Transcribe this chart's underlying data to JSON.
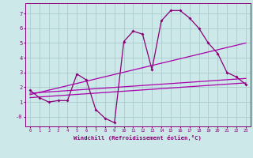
{
  "xlabel": "Windchill (Refroidissement éolien,°C)",
  "bg_color": "#cce8e8",
  "grid_color": "#aacccc",
  "line_color": "#880077",
  "line_color2": "#aa00aa",
  "xlim": [
    -0.5,
    23.5
  ],
  "ylim": [
    -0.65,
    7.7
  ],
  "xticks": [
    0,
    1,
    2,
    3,
    4,
    5,
    6,
    7,
    8,
    9,
    10,
    11,
    12,
    13,
    14,
    15,
    16,
    17,
    18,
    19,
    20,
    21,
    22,
    23
  ],
  "yticks": [
    0,
    1,
    2,
    3,
    4,
    5,
    6,
    7
  ],
  "ytick_labels": [
    "-0",
    "1",
    "2",
    "3",
    "4",
    "5",
    "6",
    "7"
  ],
  "curve1_x": [
    0,
    1,
    2,
    3,
    4,
    5,
    6,
    7,
    8,
    9,
    10,
    11,
    12,
    13,
    14,
    15,
    16,
    17,
    18,
    19,
    20,
    21,
    22,
    23
  ],
  "curve1_y": [
    1.8,
    1.3,
    1.0,
    1.1,
    1.1,
    2.9,
    2.5,
    0.5,
    -0.1,
    -0.4,
    5.1,
    5.8,
    5.6,
    3.2,
    6.5,
    7.2,
    7.2,
    6.7,
    6.0,
    5.0,
    4.3,
    3.0,
    2.7,
    2.2
  ],
  "line1_x": [
    0,
    23
  ],
  "line1_y": [
    1.6,
    2.6
  ],
  "line2_x": [
    0,
    23
  ],
  "line2_y": [
    1.5,
    5.0
  ],
  "line3_x": [
    0,
    23
  ],
  "line3_y": [
    1.3,
    2.3
  ]
}
